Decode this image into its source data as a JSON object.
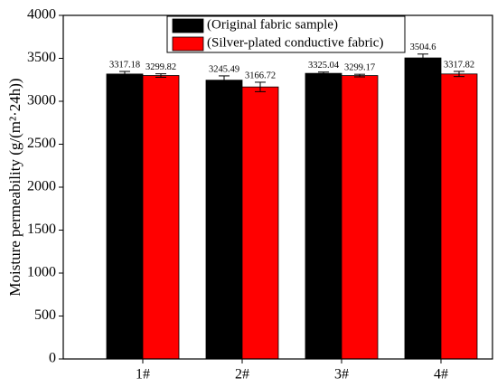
{
  "chart_data": {
    "type": "bar",
    "y_label": "Moisture permeability (g/(m²·24h))",
    "categories": [
      "1#",
      "2#",
      "3#",
      "4#"
    ],
    "series": [
      {
        "name": "(Original fabric sample)",
        "color": "#000000",
        "values": [
          3317.18,
          3245.49,
          3325.04,
          3504.6
        ],
        "errors": [
          30,
          50,
          15,
          45
        ]
      },
      {
        "name": "(Silver-plated conductive fabric)",
        "color": "#ff0000",
        "values": [
          3299.82,
          3166.72,
          3299.17,
          3317.82
        ],
        "errors": [
          20,
          55,
          15,
          30
        ]
      }
    ],
    "ylim": [
      0,
      4000
    ],
    "yticks": [
      0,
      500,
      1000,
      1500,
      2000,
      2500,
      3000,
      3500,
      4000
    ],
    "legend": "top"
  }
}
